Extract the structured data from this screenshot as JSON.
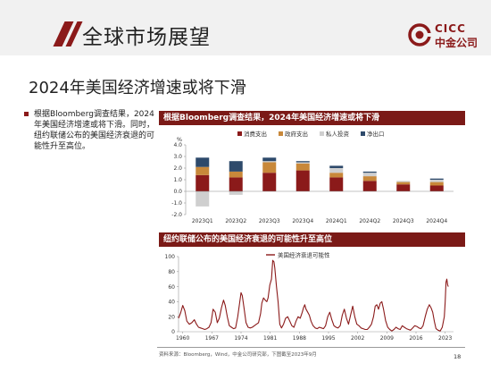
{
  "header": {
    "title": "全球市场展望"
  },
  "logo": {
    "en": "CICC",
    "cn": "中金公司",
    "color": "#8b1a1a"
  },
  "subtitle": "2024年美国经济增速或将下滑",
  "bullet": "根据Bloomberg调查结果，2024年美国经济增速或将下滑。同时，纽约联储公布的美国经济衰退的可能性升至高位。",
  "panel1": {
    "title": "根据Bloomberg调查结果，2024年美国经济增速或将下滑"
  },
  "panel2": {
    "title": "纽约联储公布的美国经济衰退的可能性升至高位"
  },
  "footer": {
    "source": "资料来源：Bloomberg，Wind，中金公司研究部，下图截至2023年9月",
    "page": "18"
  },
  "accent": "#7b1a17",
  "chart_data": [
    {
      "type": "bar",
      "stacked": true,
      "ylabel": "%",
      "ylim": [
        -2.0,
        4.0
      ],
      "yticks": [
        -2.0,
        -1.0,
        0.0,
        1.0,
        2.0,
        3.0,
        4.0
      ],
      "grid": false,
      "legend": "top",
      "categories": [
        "2023Q1",
        "2023Q2",
        "2023Q3",
        "2023Q4",
        "2024Q1",
        "2024Q2",
        "2024Q3",
        "2024Q4"
      ],
      "series": [
        {
          "name": "消费支出",
          "color": "#8b1a1a",
          "values": [
            1.4,
            1.2,
            1.6,
            1.8,
            1.2,
            0.9,
            0.6,
            0.5
          ]
        },
        {
          "name": "政府支出",
          "color": "#c8883a",
          "values": [
            0.7,
            0.5,
            0.9,
            0.6,
            0.4,
            0.4,
            0.2,
            0.3
          ]
        },
        {
          "name": "私人投资",
          "color": "#cfcfcf",
          "values": [
            -1.3,
            -0.3,
            0.1,
            0.1,
            0.4,
            0.3,
            0.1,
            0.2
          ]
        },
        {
          "name": "净出口",
          "color": "#2e4a6b",
          "values": [
            0.8,
            0.9,
            0.3,
            0.1,
            0.2,
            0.1,
            0.0,
            0.1
          ]
        }
      ]
    },
    {
      "type": "line",
      "ylim": [
        0,
        100
      ],
      "yticks": [
        0,
        20,
        40,
        60,
        80,
        100
      ],
      "xlim": [
        1959,
        2025
      ],
      "xticks": [
        1960,
        1967,
        1974,
        1981,
        1988,
        1995,
        2002,
        2009,
        2016,
        2023
      ],
      "grid": false,
      "legend": "top",
      "series": [
        {
          "name": "美国经济衰退可能性",
          "color": "#8b1a1a",
          "x": [
            1959.0,
            1959.5,
            1960.0,
            1960.5,
            1961.0,
            1961.6,
            1962.2,
            1962.8,
            1963.3,
            1963.8,
            1964.3,
            1964.8,
            1965.3,
            1965.8,
            1966.3,
            1966.8,
            1967.3,
            1967.8,
            1968.3,
            1968.8,
            1969.3,
            1969.8,
            1970.2,
            1970.7,
            1971.2,
            1971.7,
            1972.2,
            1972.7,
            1973.2,
            1973.7,
            1974.0,
            1974.3,
            1974.7,
            1975.2,
            1975.7,
            1976.2,
            1976.7,
            1977.2,
            1977.7,
            1978.2,
            1978.7,
            1979.0,
            1979.4,
            1979.8,
            1980.2,
            1980.5,
            1980.9,
            1981.3,
            1981.6,
            1981.9,
            1982.1,
            1982.5,
            1982.9,
            1983.3,
            1983.7,
            1984.2,
            1984.7,
            1985.2,
            1985.7,
            1986.2,
            1986.7,
            1987.2,
            1987.7,
            1988.2,
            1988.7,
            1989.0,
            1989.3,
            1989.6,
            1990.0,
            1990.4,
            1990.8,
            1991.3,
            1991.8,
            1992.3,
            1992.8,
            1993.3,
            1993.8,
            1994.3,
            1994.8,
            1995.3,
            1995.8,
            1996.3,
            1996.8,
            1997.3,
            1997.8,
            1998.3,
            1998.8,
            1999.3,
            1999.8,
            2000.3,
            2000.8,
            2001.3,
            2001.8,
            2002.3,
            2002.8,
            2003.3,
            2003.8,
            2004.3,
            2004.8,
            2005.3,
            2005.8,
            2006.2,
            2006.6,
            2007.0,
            2007.4,
            2007.8,
            2008.2,
            2008.7,
            2009.2,
            2009.7,
            2010.2,
            2010.7,
            2011.2,
            2011.7,
            2012.2,
            2012.7,
            2013.2,
            2013.7,
            2014.2,
            2014.7,
            2015.2,
            2015.7,
            2016.2,
            2016.7,
            2017.2,
            2017.7,
            2018.2,
            2018.7,
            2019.2,
            2019.6,
            2020.0,
            2020.4,
            2020.8,
            2021.3,
            2021.8,
            2022.3,
            2022.8,
            2023.0,
            2023.2,
            2023.4,
            2023.6,
            2023.75
          ],
          "y": [
            18,
            25,
            35,
            28,
            14,
            10,
            12,
            16,
            10,
            6,
            5,
            4,
            3,
            4,
            6,
            12,
            30,
            26,
            12,
            18,
            32,
            42,
            35,
            20,
            8,
            6,
            4,
            5,
            20,
            40,
            52,
            48,
            32,
            12,
            6,
            5,
            6,
            8,
            10,
            12,
            24,
            38,
            45,
            42,
            40,
            45,
            62,
            70,
            95,
            93,
            85,
            60,
            40,
            10,
            5,
            10,
            18,
            20,
            14,
            8,
            6,
            14,
            20,
            18,
            26,
            32,
            36,
            30,
            26,
            22,
            14,
            8,
            5,
            4,
            6,
            5,
            4,
            8,
            20,
            26,
            16,
            8,
            6,
            5,
            8,
            22,
            30,
            18,
            10,
            22,
            34,
            20,
            10,
            8,
            5,
            4,
            3,
            3,
            6,
            10,
            20,
            34,
            36,
            30,
            38,
            40,
            30,
            15,
            6,
            3,
            1,
            3,
            6,
            4,
            3,
            8,
            6,
            4,
            3,
            2,
            5,
            8,
            7,
            5,
            4,
            8,
            20,
            30,
            36,
            32,
            26,
            14,
            4,
            2,
            1,
            6,
            20,
            40,
            66,
            70,
            62,
            60
          ]
        }
      ]
    }
  ]
}
